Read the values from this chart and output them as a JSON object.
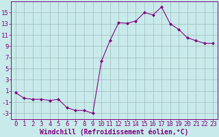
{
  "x": [
    0,
    1,
    2,
    3,
    4,
    5,
    6,
    7,
    8,
    9,
    10,
    11,
    12,
    13,
    14,
    15,
    16,
    17,
    18,
    19,
    20,
    21,
    22,
    23
  ],
  "y": [
    0.7,
    -0.3,
    -0.5,
    -0.5,
    -0.7,
    -0.5,
    -2.0,
    -2.5,
    -2.5,
    -3.0,
    6.3,
    10.0,
    13.2,
    13.1,
    13.5,
    15.0,
    14.6,
    16.0,
    13.0,
    12.0,
    10.5,
    10.0,
    9.5,
    9.5
  ],
  "line_color": "#800080",
  "marker": "D",
  "marker_size": 2.0,
  "bg_color": "#c8eaea",
  "grid_color": "#a0b8b8",
  "xlabel": "Windchill (Refroidissement éolien,°C)",
  "xlabel_color": "#800080",
  "tick_color": "#800080",
  "ylim": [
    -4,
    17
  ],
  "yticks": [
    -3,
    -1,
    1,
    3,
    5,
    7,
    9,
    11,
    13,
    15
  ],
  "xlim": [
    -0.5,
    23.5
  ],
  "xticks": [
    0,
    1,
    2,
    3,
    4,
    5,
    6,
    7,
    8,
    9,
    10,
    11,
    12,
    13,
    14,
    15,
    16,
    17,
    18,
    19,
    20,
    21,
    22,
    23
  ],
  "tick_fontsize": 6.5,
  "xlabel_fontsize": 7.0
}
